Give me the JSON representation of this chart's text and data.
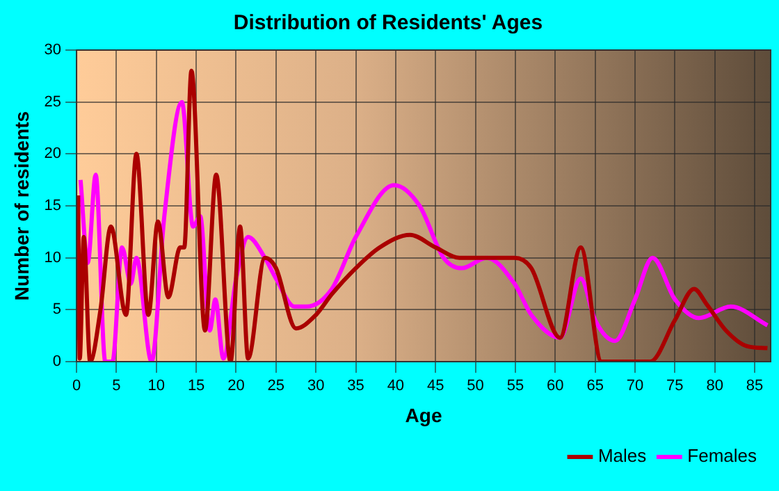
{
  "chart_data": {
    "type": "line",
    "title": "Distribution of Residents' Ages",
    "xlabel": "Age",
    "ylabel": "Number of residents",
    "xlim": [
      0,
      87
    ],
    "xticks": [
      0,
      5,
      10,
      15,
      20,
      25,
      30,
      35,
      40,
      45,
      50,
      55,
      60,
      65,
      70,
      75,
      80,
      85
    ],
    "ylim": [
      0,
      30
    ],
    "yticks": [
      0,
      5,
      10,
      15,
      20,
      25,
      30
    ],
    "grid": true,
    "legend": "bottom right",
    "marker": "none",
    "line_style": "solid",
    "series": [
      {
        "name": "Males",
        "color": "#aa0000",
        "x": [
          0.2,
          0.4,
          0.9,
          1.7,
          3,
          4.3,
          6.2,
          7.5,
          9,
          10.2,
          11.5,
          13,
          13.5,
          14.4,
          16.1,
          17.5,
          19.3,
          20.5,
          21.5,
          23.6,
          25,
          27.5,
          30,
          32,
          35,
          38,
          41.8,
          45,
          48,
          52,
          54.9,
          57,
          60.6,
          63.2,
          65.8,
          68,
          71.9,
          75,
          77.4,
          79,
          81.4,
          84,
          86.6
        ],
        "values": [
          16,
          0.3,
          12,
          0,
          5,
          13,
          4.5,
          20,
          4.5,
          13.5,
          6.2,
          11,
          11,
          28,
          3,
          18,
          0,
          13,
          0.3,
          10,
          9,
          3.2,
          4.5,
          6.5,
          9,
          11,
          12.2,
          11,
          10,
          10,
          10,
          9,
          2.3,
          11,
          0,
          0,
          0,
          4,
          7,
          5.5,
          3,
          1.5,
          1.3
        ]
      },
      {
        "name": "Females",
        "color": "#ff00ff",
        "x": [
          0.5,
          1.4,
          2.4,
          3.6,
          4.5,
          5.7,
          6.8,
          7.5,
          9.4,
          11,
          13.2,
          14.6,
          15.5,
          16.7,
          17.4,
          18.4,
          20,
          21.5,
          23.6,
          25,
          27.3,
          28.8,
          32,
          35,
          39.8,
          43,
          46,
          48.3,
          51.4,
          54.9,
          57,
          60.6,
          63.2,
          65,
          67.5,
          70,
          72.2,
          75,
          78,
          82,
          86.6
        ],
        "values": [
          17.5,
          9.5,
          18,
          0,
          0,
          11,
          7.5,
          10,
          0,
          14,
          25,
          13,
          14,
          3,
          6,
          0.3,
          8,
          12,
          10,
          8,
          5.3,
          5.3,
          7,
          12,
          17,
          15,
          10,
          9,
          10,
          7.5,
          4.5,
          2.3,
          8,
          4,
          2,
          6,
          10,
          6,
          4.2,
          5.3,
          3.5
        ]
      }
    ]
  }
}
